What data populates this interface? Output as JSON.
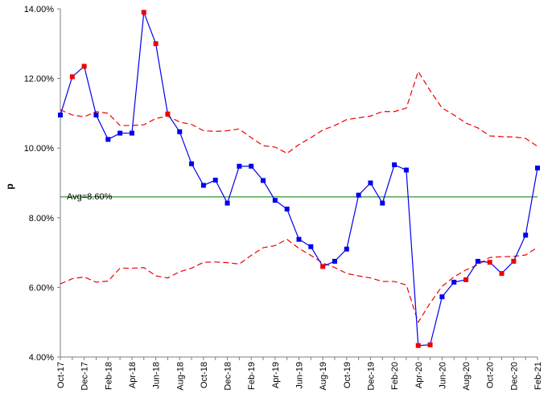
{
  "chart_data": {
    "type": "line",
    "title": "",
    "xlabel": "",
    "ylabel": "p",
    "ylim": [
      4.0,
      14.0
    ],
    "yticks": [
      "4.00%",
      "6.00%",
      "8.00%",
      "10.00%",
      "12.00%",
      "14.00%"
    ],
    "ytick_values": [
      4,
      6,
      8,
      10,
      12,
      14
    ],
    "x_tick_labels": [
      "Oct-17",
      "Dec-17",
      "Feb-18",
      "Apr-18",
      "Jun-18",
      "Aug-18",
      "Oct-18",
      "Dec-18",
      "Feb-19",
      "Apr-19",
      "Jun-19",
      "Aug-19",
      "Oct-19",
      "Dec-19",
      "Feb-20",
      "Apr-20",
      "Jun-20",
      "Aug-20",
      "Oct-20",
      "Dec-20",
      "Feb-21"
    ],
    "categories": [
      "Oct-17",
      "Nov-17",
      "Dec-17",
      "Jan-18",
      "Feb-18",
      "Mar-18",
      "Apr-18",
      "May-18",
      "Jun-18",
      "Jul-18",
      "Aug-18",
      "Sep-18",
      "Oct-18",
      "Nov-18",
      "Dec-18",
      "Jan-19",
      "Feb-19",
      "Mar-19",
      "Apr-19",
      "May-19",
      "Jun-19",
      "Jul-19",
      "Aug-19",
      "Sep-19",
      "Oct-19",
      "Nov-19",
      "Dec-19",
      "Jan-20",
      "Feb-20",
      "Mar-20",
      "Apr-20",
      "May-20",
      "Jun-20",
      "Jul-20",
      "Aug-20",
      "Sep-20",
      "Oct-20",
      "Nov-20",
      "Dec-20",
      "Jan-21",
      "Feb-21"
    ],
    "series": [
      {
        "values": [
          10.95,
          12.05,
          12.35,
          10.95,
          10.25,
          10.43,
          10.43,
          13.9,
          13.0,
          10.98,
          10.47,
          9.55,
          8.93,
          9.08,
          8.42,
          9.48,
          9.48,
          9.07,
          8.5,
          8.25,
          7.38,
          7.17,
          6.6,
          6.75,
          7.1,
          8.65,
          9.0,
          8.42,
          9.52,
          9.37,
          4.33,
          4.35,
          5.73,
          6.15,
          6.22,
          6.75,
          6.72,
          6.4,
          6.75,
          7.5,
          9.43
        ],
        "point_colors": [
          "#0000ee",
          "#ee0000",
          "#ee0000",
          "#0000ee",
          "#0000ee",
          "#0000ee",
          "#0000ee",
          "#ee0000",
          "#ee0000",
          "#ee0000",
          "#0000ee",
          "#0000ee",
          "#0000ee",
          "#0000ee",
          "#0000ee",
          "#0000ee",
          "#0000ee",
          "#0000ee",
          "#0000ee",
          "#0000ee",
          "#0000ee",
          "#0000ee",
          "#ee0000",
          "#0000ee",
          "#0000ee",
          "#0000ee",
          "#0000ee",
          "#0000ee",
          "#0000ee",
          "#0000ee",
          "#ee0000",
          "#ee0000",
          "#0000ee",
          "#0000ee",
          "#ee0000",
          "#0000ee",
          "#ee0000",
          "#ee0000",
          "#ee0000",
          "#0000ee",
          "#0000ee"
        ],
        "color": "#0000ee"
      }
    ],
    "ucl": [
      11.1,
      10.95,
      10.9,
      11.05,
      11.0,
      10.65,
      10.65,
      10.67,
      10.85,
      10.92,
      10.75,
      10.68,
      10.5,
      10.48,
      10.5,
      10.55,
      10.3,
      10.07,
      10.03,
      9.85,
      10.1,
      10.3,
      10.52,
      10.65,
      10.82,
      10.87,
      10.92,
      11.05,
      11.05,
      11.15,
      12.2,
      11.65,
      11.15,
      10.95,
      10.72,
      10.58,
      10.35,
      10.33,
      10.32,
      10.28,
      10.05
    ],
    "lcl": [
      6.1,
      6.25,
      6.3,
      6.15,
      6.18,
      6.55,
      6.55,
      6.57,
      6.33,
      6.27,
      6.45,
      6.55,
      6.72,
      6.73,
      6.71,
      6.67,
      6.92,
      7.14,
      7.2,
      7.38,
      7.12,
      6.92,
      6.7,
      6.57,
      6.4,
      6.33,
      6.27,
      6.17,
      6.17,
      6.07,
      5.0,
      5.55,
      6.03,
      6.3,
      6.5,
      6.65,
      6.86,
      6.88,
      6.89,
      6.93,
      7.15
    ],
    "average": 8.6,
    "average_label": "Avg=8.60%",
    "limit_color": "#ee0000",
    "average_color": "#007700",
    "grid": false,
    "legend": "none"
  }
}
